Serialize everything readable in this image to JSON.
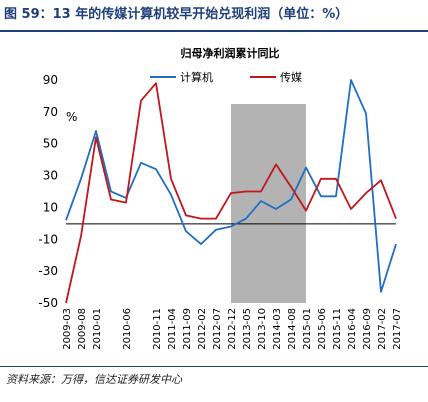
{
  "figure": {
    "title": "图 59：13 年的传媒计算机较早开始兑现利润（单位：%）",
    "source": "资料来源：万得，信达证券研发中心"
  },
  "chart_data": {
    "type": "line",
    "title": "归母净利润累计同比",
    "ylabel": "%",
    "ylim": [
      -50,
      90
    ],
    "yticks": [
      -50,
      -30,
      -10,
      10,
      30,
      50,
      70,
      90
    ],
    "grid": false,
    "legend_position": "top",
    "shaded_region": {
      "from": "2012-12",
      "to": "2015-01",
      "color": "#b3b3b3"
    },
    "categories": [
      "2009-03",
      "2009-08",
      "2010-01",
      "2010-03",
      "2010-06",
      "2010-09",
      "2010-11",
      "2011-04",
      "2011-09",
      "2012-02",
      "2012-07",
      "2012-12",
      "2013-05",
      "2013-10",
      "2014-03",
      "2014-08",
      "2015-01",
      "2015-06",
      "2015-11",
      "2016-04",
      "2016-09",
      "2017-02",
      "2017-07"
    ],
    "x_tick_labels": [
      "2009-03",
      "2009-08",
      "2010-01",
      "2010-06",
      "2010-11",
      "2011-04",
      "2011-09",
      "2012-02",
      "2012-07",
      "2012-12",
      "2013-05",
      "2013-10",
      "2014-03",
      "2014-08",
      "2015-01",
      "2015-06",
      "2015-11",
      "2016-04",
      "2016-09",
      "2017-02",
      "2017-07"
    ],
    "series": [
      {
        "name": "计算机",
        "color": "#1f6fc5",
        "values": [
          2,
          28,
          58,
          20,
          16,
          38,
          34,
          18,
          -5,
          -13,
          -4,
          -2,
          3,
          14,
          9,
          15,
          35,
          17,
          17,
          92,
          69,
          -43,
          -13
        ]
      },
      {
        "name": "传媒",
        "color": "#c0161d",
        "values": [
          -50,
          -8,
          54,
          15,
          13,
          77,
          88,
          28,
          5,
          3,
          3,
          19,
          20,
          20,
          37,
          23,
          8,
          28,
          28,
          9,
          19,
          27,
          3
        ]
      }
    ]
  }
}
